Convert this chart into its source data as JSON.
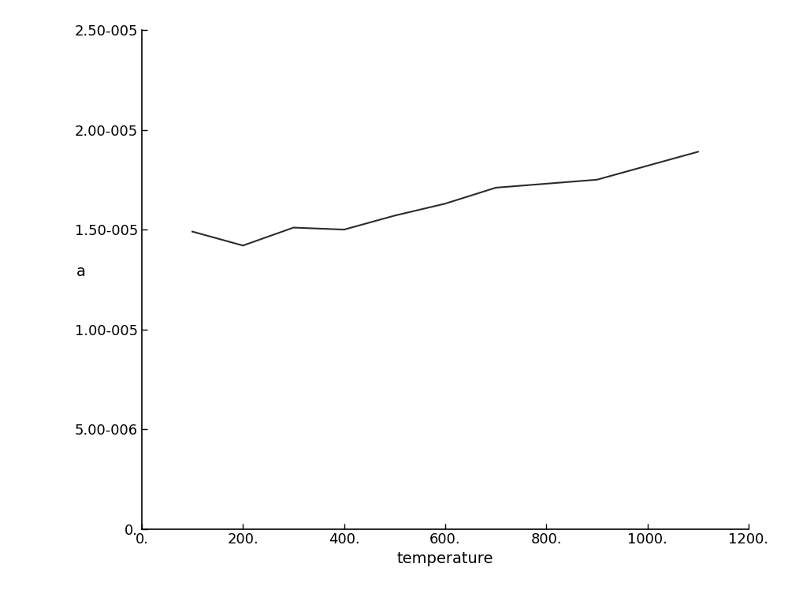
{
  "x": [
    100,
    200,
    300,
    400,
    500,
    600,
    700,
    800,
    900,
    1000,
    1100
  ],
  "y": [
    1.49e-05,
    1.42e-05,
    1.51e-05,
    1.5e-05,
    1.57e-05,
    1.63e-05,
    1.71e-05,
    1.73e-05,
    1.75e-05,
    1.82e-05,
    1.89e-05
  ],
  "xlabel": "temperature",
  "ylabel": "a",
  "xlim": [
    0,
    1200
  ],
  "ylim": [
    0,
    2.5e-05
  ],
  "xticks": [
    0,
    200,
    400,
    600,
    800,
    1000,
    1200
  ],
  "yticks": [
    0,
    5e-06,
    1e-05,
    1.5e-05,
    2e-05,
    2.5e-05
  ],
  "line_color": "#2b2b2b",
  "line_width": 1.5,
  "background_color": "#ffffff",
  "tick_label_fontsize": 13,
  "axis_label_fontsize": 14
}
